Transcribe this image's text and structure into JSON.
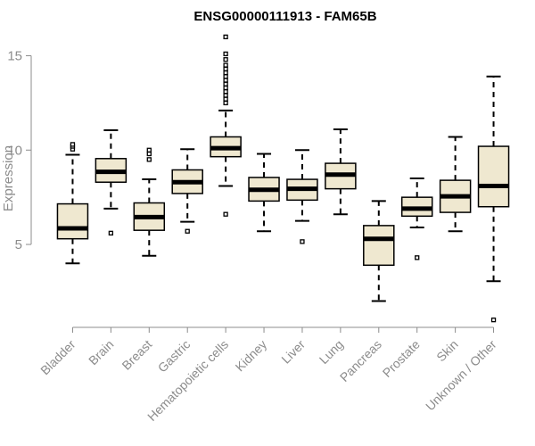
{
  "chart_data": {
    "type": "box",
    "title": "ENSG00000111913 - FAM65B",
    "xlabel": "",
    "ylabel": "Expression",
    "ylim": [
      0.7,
      16.3
    ],
    "yticks": [
      5,
      10,
      15
    ],
    "colors": {
      "fill": "#efe8d0",
      "stroke": "#000000",
      "axis": "#8c8c8c",
      "text": "#8c8c8c"
    },
    "categories": [
      "Bladder",
      "Brain",
      "Breast",
      "Gastric",
      "Hematopoietic cells",
      "Kidney",
      "Liver",
      "Lung",
      "Pancreas",
      "Prostate",
      "Skin",
      "Unknown / Other"
    ],
    "boxes": [
      {
        "name": "Bladder",
        "whisker_low": 4.0,
        "q1": 5.3,
        "median": 5.85,
        "q3": 7.15,
        "whisker_high": 9.75,
        "outliers": [
          10.05,
          10.2,
          10.3
        ]
      },
      {
        "name": "Brain",
        "whisker_low": 6.9,
        "q1": 8.3,
        "median": 8.85,
        "q3": 9.55,
        "whisker_high": 11.05,
        "outliers": [
          5.6
        ]
      },
      {
        "name": "Breast",
        "whisker_low": 4.4,
        "q1": 5.75,
        "median": 6.45,
        "q3": 7.2,
        "whisker_high": 8.45,
        "outliers": [
          9.5,
          9.8,
          10.0
        ]
      },
      {
        "name": "Gastric",
        "whisker_low": 6.2,
        "q1": 7.7,
        "median": 8.3,
        "q3": 8.95,
        "whisker_high": 10.05,
        "outliers": [
          5.7
        ]
      },
      {
        "name": "Hematopoietic cells",
        "whisker_low": 8.1,
        "q1": 9.65,
        "median": 10.1,
        "q3": 10.7,
        "whisker_high": 12.1,
        "outliers": [
          6.6,
          12.5,
          12.7,
          12.9,
          13.1,
          13.3,
          13.5,
          13.7,
          13.9,
          14.1,
          14.3,
          14.5,
          14.8,
          15.1,
          16.0
        ]
      },
      {
        "name": "Kidney",
        "whisker_low": 5.7,
        "q1": 7.3,
        "median": 7.9,
        "q3": 8.55,
        "whisker_high": 9.8,
        "outliers": []
      },
      {
        "name": "Liver",
        "whisker_low": 6.25,
        "q1": 7.35,
        "median": 7.95,
        "q3": 8.45,
        "whisker_high": 10.0,
        "outliers": [
          5.15
        ]
      },
      {
        "name": "Lung",
        "whisker_low": 6.6,
        "q1": 7.95,
        "median": 8.7,
        "q3": 9.3,
        "whisker_high": 11.1,
        "outliers": []
      },
      {
        "name": "Pancreas",
        "whisker_low": 2.0,
        "q1": 3.9,
        "median": 5.3,
        "q3": 6.0,
        "whisker_high": 7.3,
        "outliers": []
      },
      {
        "name": "Prostate",
        "whisker_low": 5.9,
        "q1": 6.5,
        "median": 6.9,
        "q3": 7.5,
        "whisker_high": 8.5,
        "outliers": [
          4.3
        ]
      },
      {
        "name": "Skin",
        "whisker_low": 5.7,
        "q1": 6.7,
        "median": 7.55,
        "q3": 8.4,
        "whisker_high": 10.7,
        "outliers": []
      },
      {
        "name": "Unknown / Other",
        "whisker_low": 3.05,
        "q1": 7.0,
        "median": 8.1,
        "q3": 10.2,
        "whisker_high": 13.9,
        "outliers": [
          1.0
        ]
      }
    ]
  }
}
